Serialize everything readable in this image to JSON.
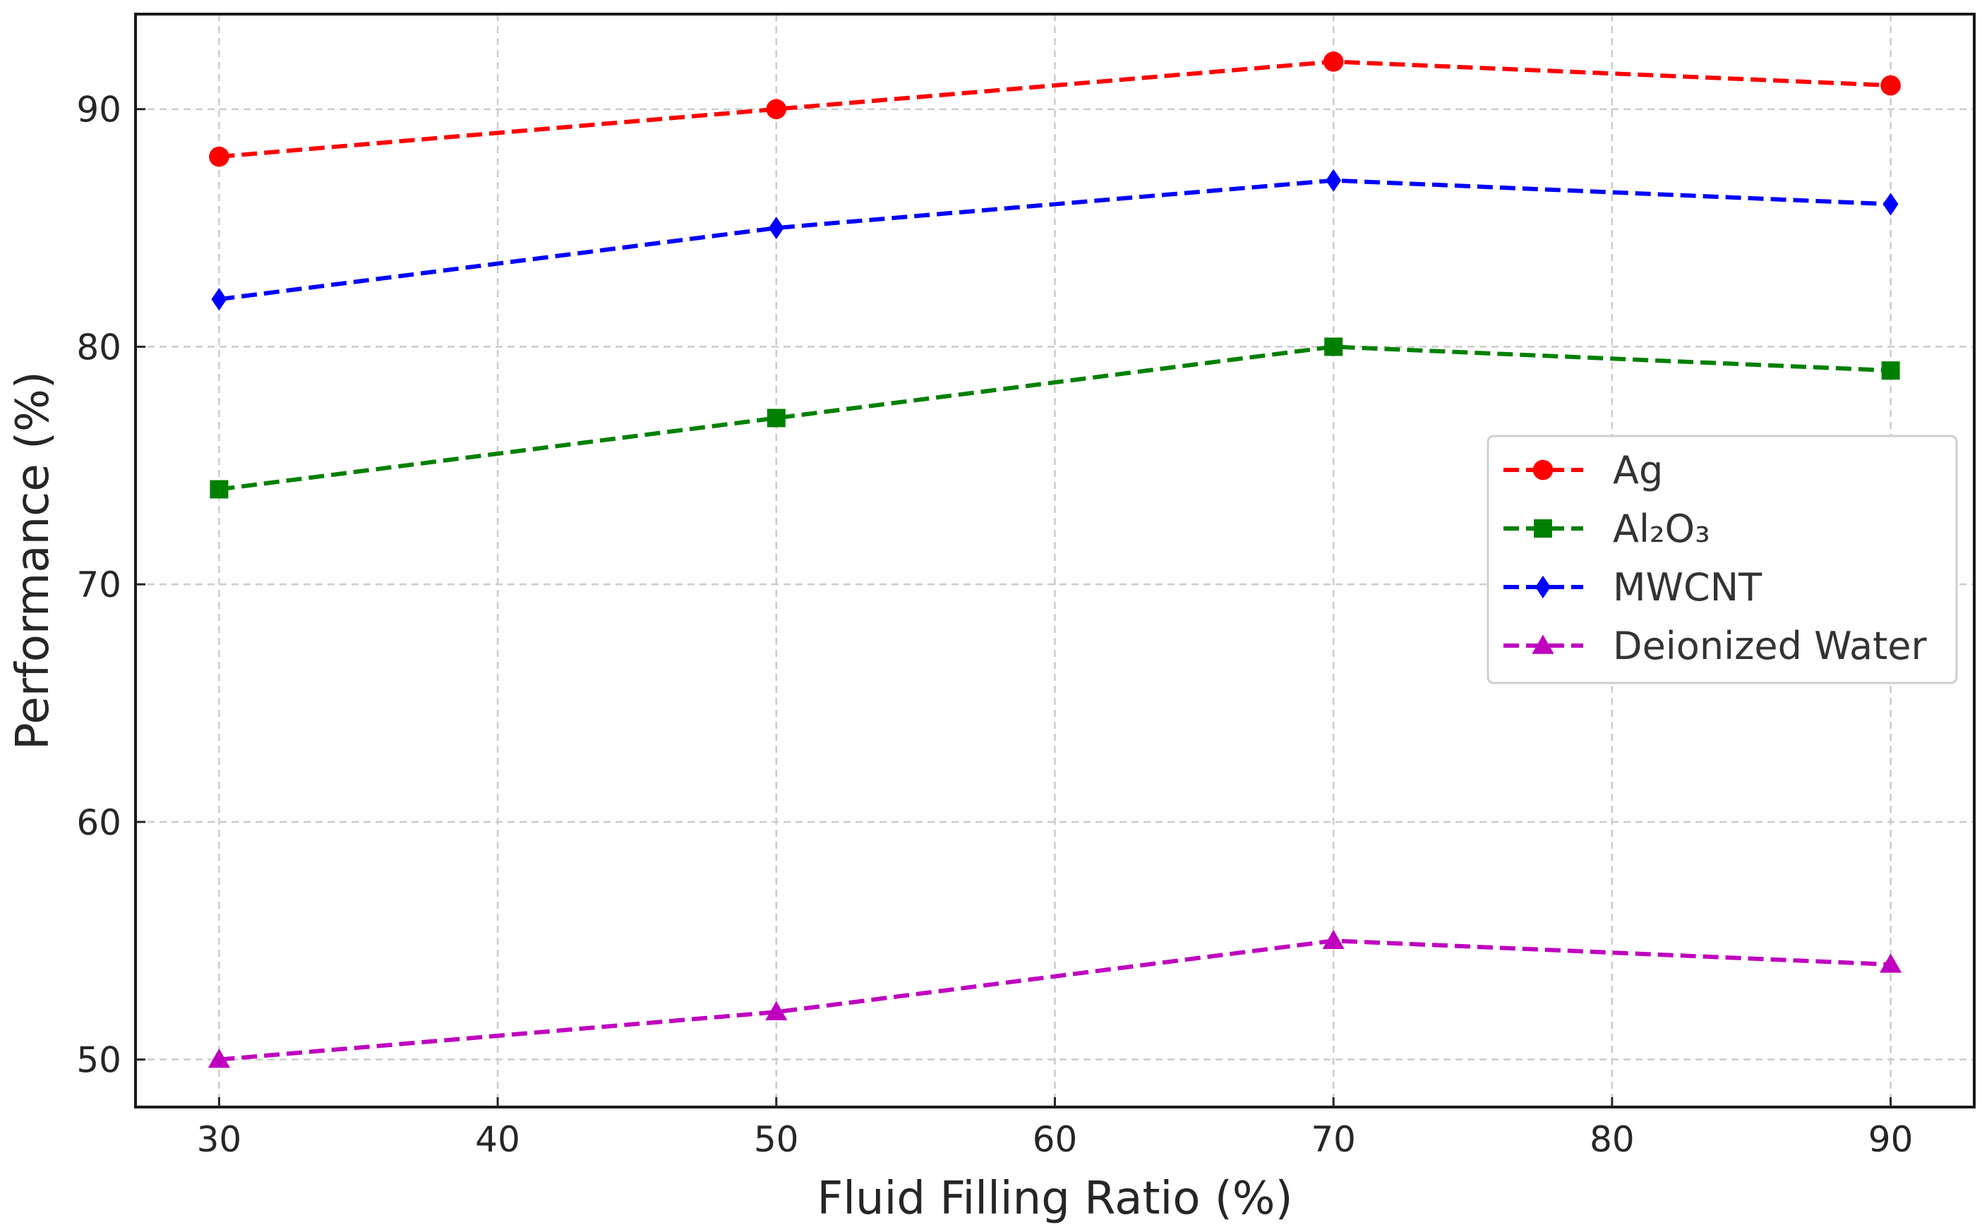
{
  "chart_data": {
    "type": "line",
    "title": "",
    "xlabel": "Fluid Filling Ratio (%)",
    "ylabel": "Performance (%)",
    "x": [
      30,
      50,
      70,
      90
    ],
    "xlim": [
      27,
      93
    ],
    "ylim": [
      48,
      94
    ],
    "xticks": [
      30,
      40,
      50,
      60,
      70,
      80,
      90
    ],
    "yticks": [
      50,
      60,
      70,
      80,
      90
    ],
    "xtick_labels": [
      "30",
      "40",
      "50",
      "60",
      "70",
      "80",
      "90"
    ],
    "ytick_labels": [
      "50",
      "60",
      "70",
      "80",
      "90"
    ],
    "grid": true,
    "legend_position": "center-right",
    "series": [
      {
        "name": "Ag",
        "values": [
          88,
          90,
          92,
          91
        ],
        "color": "#ff0000",
        "marker": "circle"
      },
      {
        "name": "Al₂O₃",
        "values": [
          74,
          77,
          80,
          79
        ],
        "color": "#008000",
        "marker": "square"
      },
      {
        "name": "MWCNT",
        "values": [
          82,
          85,
          87,
          86
        ],
        "color": "#0000ff",
        "marker": "diamond"
      },
      {
        "name": "Deionized Water",
        "values": [
          50,
          52,
          55,
          54
        ],
        "color": "#bf00bf",
        "marker": "triangle"
      }
    ]
  }
}
